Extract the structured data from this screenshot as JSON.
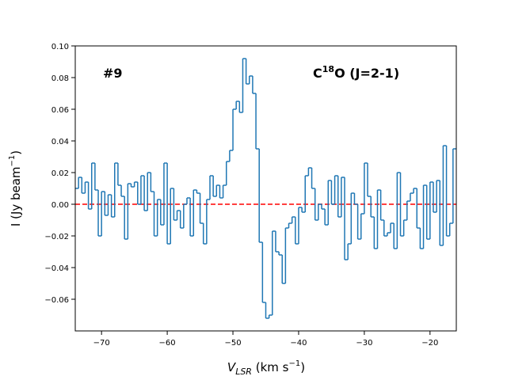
{
  "chart_data": {
    "type": "step",
    "annotations": [
      {
        "parts": [
          "#9"
        ]
      },
      {
        "parts": [
          "C",
          "18",
          "O (J=2-1)"
        ]
      }
    ],
    "xlabel": {
      "parts": [
        "V",
        "LSR",
        " (km s",
        "−1",
        ")"
      ]
    },
    "ylabel": {
      "parts": [
        "I (Jy beam",
        "−1",
        ")"
      ]
    },
    "xlim": [
      -74,
      -16
    ],
    "ylim": [
      -0.08,
      0.1
    ],
    "xticks": [
      {
        "value": -70,
        "label": "−70"
      },
      {
        "value": -60,
        "label": "−60"
      },
      {
        "value": -50,
        "label": "−50"
      },
      {
        "value": -40,
        "label": "−40"
      },
      {
        "value": -30,
        "label": "−30"
      },
      {
        "value": -20,
        "label": "−20"
      }
    ],
    "yticks": [
      {
        "value": -0.06,
        "label": "−0.06"
      },
      {
        "value": -0.04,
        "label": "−0.04"
      },
      {
        "value": -0.02,
        "label": "−0.02"
      },
      {
        "value": 0,
        "label": "0.00"
      },
      0.02,
      0.04,
      0.06,
      0.08,
      {
        "value": 0.1,
        "label": "0.10"
      }
    ],
    "hline": {
      "value": 0,
      "color": "#ff0000"
    },
    "series": [
      {
        "color": "#1f77b4",
        "x": [
          -73.75,
          -73.25,
          -72.75,
          -72.25,
          -71.75,
          -71.25,
          -70.75,
          -70.25,
          -69.75,
          -69.25,
          -68.75,
          -68.25,
          -67.75,
          -67.25,
          -66.75,
          -66.25,
          -65.75,
          -65.25,
          -64.75,
          -64.25,
          -63.75,
          -63.25,
          -62.75,
          -62.25,
          -61.75,
          -61.25,
          -60.75,
          -60.25,
          -59.75,
          -59.25,
          -58.75,
          -58.25,
          -57.75,
          -57.25,
          -56.75,
          -56.25,
          -55.75,
          -55.25,
          -54.75,
          -54.25,
          -53.75,
          -53.25,
          -52.75,
          -52.25,
          -51.75,
          -51.25,
          -50.75,
          -50.25,
          -49.75,
          -49.25,
          -48.75,
          -48.25,
          -47.75,
          -47.25,
          -46.75,
          -46.25,
          -45.75,
          -45.25,
          -44.75,
          -44.25,
          -43.75,
          -43.25,
          -42.75,
          -42.25,
          -41.75,
          -41.25,
          -40.75,
          -40.25,
          -39.75,
          -39.25,
          -38.75,
          -38.25,
          -37.75,
          -37.25,
          -36.75,
          -36.25,
          -35.75,
          -35.25,
          -34.75,
          -34.25,
          -33.75,
          -33.25,
          -32.75,
          -32.25,
          -31.75,
          -31.25,
          -30.75,
          -30.25,
          -29.75,
          -29.25,
          -28.75,
          -28.25,
          -27.75,
          -27.25,
          -26.75,
          -26.25,
          -25.75,
          -25.25,
          -24.75,
          -24.25,
          -23.75,
          -23.25,
          -22.75,
          -22.25,
          -21.75,
          -21.25,
          -20.75,
          -20.25,
          -19.75,
          -19.25,
          -18.75,
          -18.25,
          -17.75,
          -17.25,
          -16.75,
          -16.25
        ],
        "values": [
          0.01,
          0.017,
          0.007,
          0.014,
          -0.003,
          0.026,
          0.009,
          -0.02,
          0.008,
          -0.007,
          0.006,
          -0.008,
          0.026,
          0.012,
          0.005,
          -0.022,
          0.013,
          0.011,
          0.014,
          0.0,
          0.018,
          -0.004,
          0.02,
          0.008,
          -0.02,
          0.003,
          -0.013,
          0.026,
          -0.025,
          0.01,
          -0.01,
          -0.004,
          -0.015,
          0.0,
          0.004,
          -0.02,
          0.009,
          0.007,
          -0.012,
          -0.025,
          0.003,
          0.018,
          0.005,
          0.012,
          0.004,
          0.012,
          0.027,
          0.034,
          0.06,
          0.065,
          0.058,
          0.092,
          0.076,
          0.081,
          0.07,
          0.035,
          -0.024,
          -0.062,
          -0.072,
          -0.07,
          -0.017,
          -0.03,
          -0.032,
          -0.05,
          -0.015,
          -0.012,
          -0.008,
          -0.025,
          -0.002,
          -0.005,
          0.018,
          0.023,
          0.01,
          -0.01,
          0.0,
          -0.003,
          -0.013,
          0.015,
          0.0,
          0.018,
          -0.008,
          0.017,
          -0.035,
          -0.025,
          0.007,
          0.0,
          -0.022,
          -0.006,
          0.026,
          0.005,
          -0.008,
          -0.028,
          0.009,
          -0.01,
          -0.02,
          -0.018,
          -0.012,
          -0.028,
          0.02,
          -0.02,
          -0.01,
          0.002,
          0.007,
          0.01,
          -0.015,
          -0.028,
          0.012,
          -0.022,
          0.014,
          -0.005,
          0.015,
          -0.026,
          0.037,
          -0.02,
          -0.012,
          0.035
        ]
      }
    ]
  }
}
